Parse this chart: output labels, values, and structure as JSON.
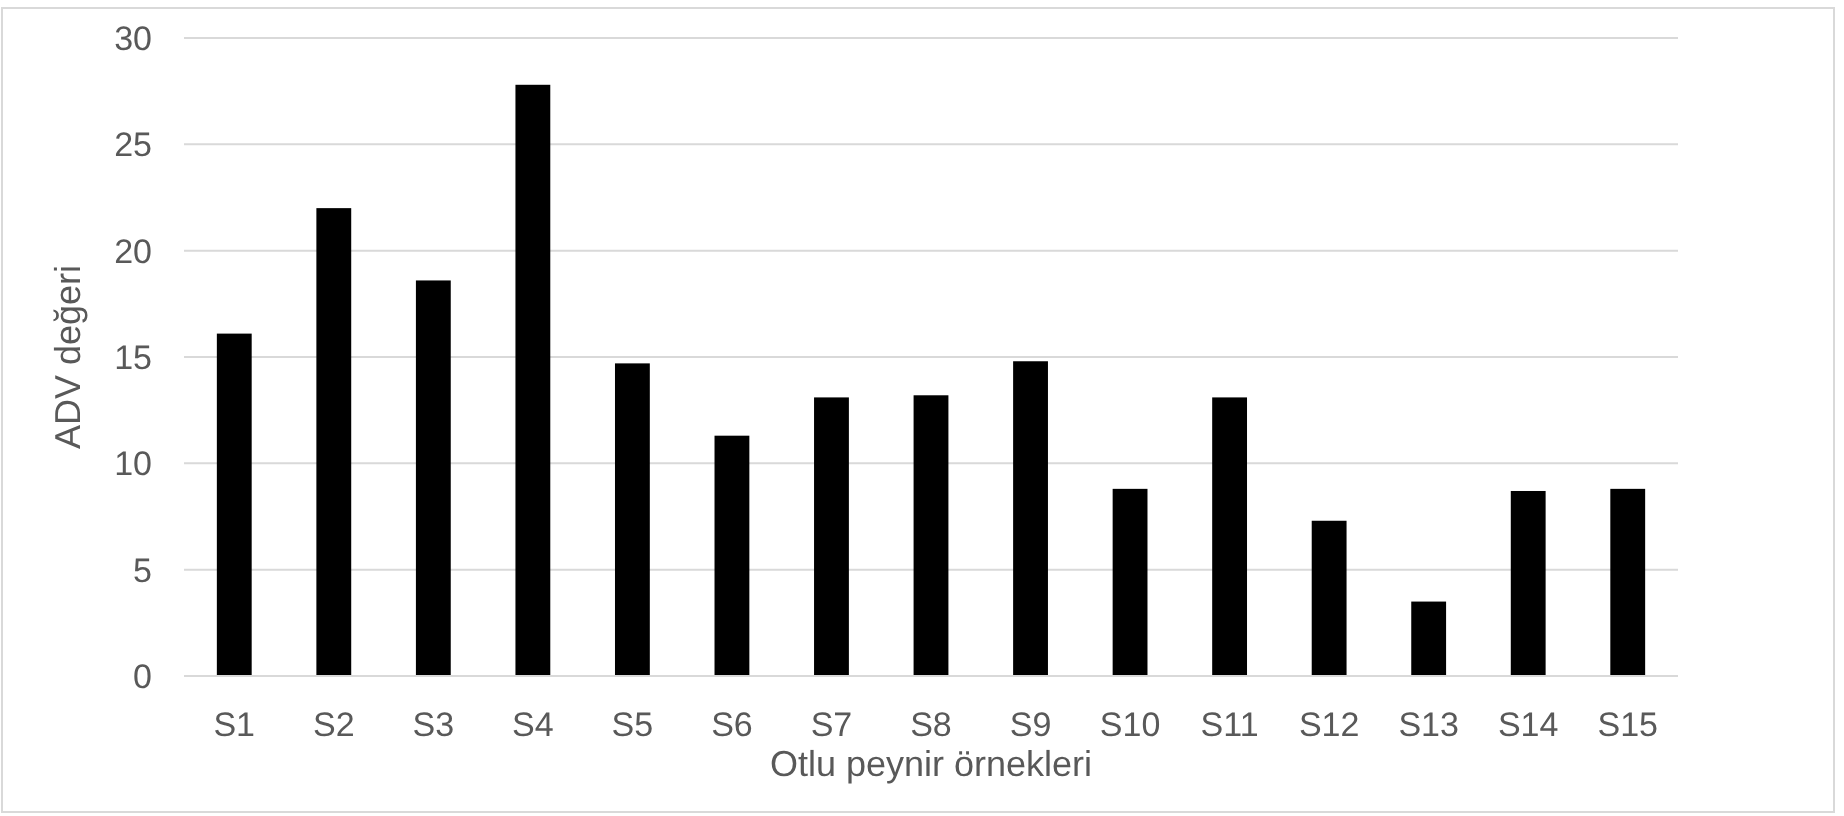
{
  "chart_data": {
    "type": "bar",
    "xlabel": "Otlu peynir örnekleri",
    "ylabel": "ADV değeri",
    "categories": [
      "S1",
      "S2",
      "S3",
      "S4",
      "S5",
      "S6",
      "S7",
      "S8",
      "S9",
      "S10",
      "S11",
      "S12",
      "S13",
      "S14",
      "S15"
    ],
    "values": [
      16.1,
      22.0,
      18.6,
      27.8,
      14.7,
      11.3,
      13.1,
      13.2,
      14.8,
      8.8,
      13.1,
      7.3,
      3.5,
      8.7,
      8.8
    ],
    "color": "#000000",
    "ylim": [
      0,
      30
    ],
    "yticks": [
      0,
      5,
      10,
      15,
      20,
      25,
      30
    ],
    "grid": "y"
  }
}
